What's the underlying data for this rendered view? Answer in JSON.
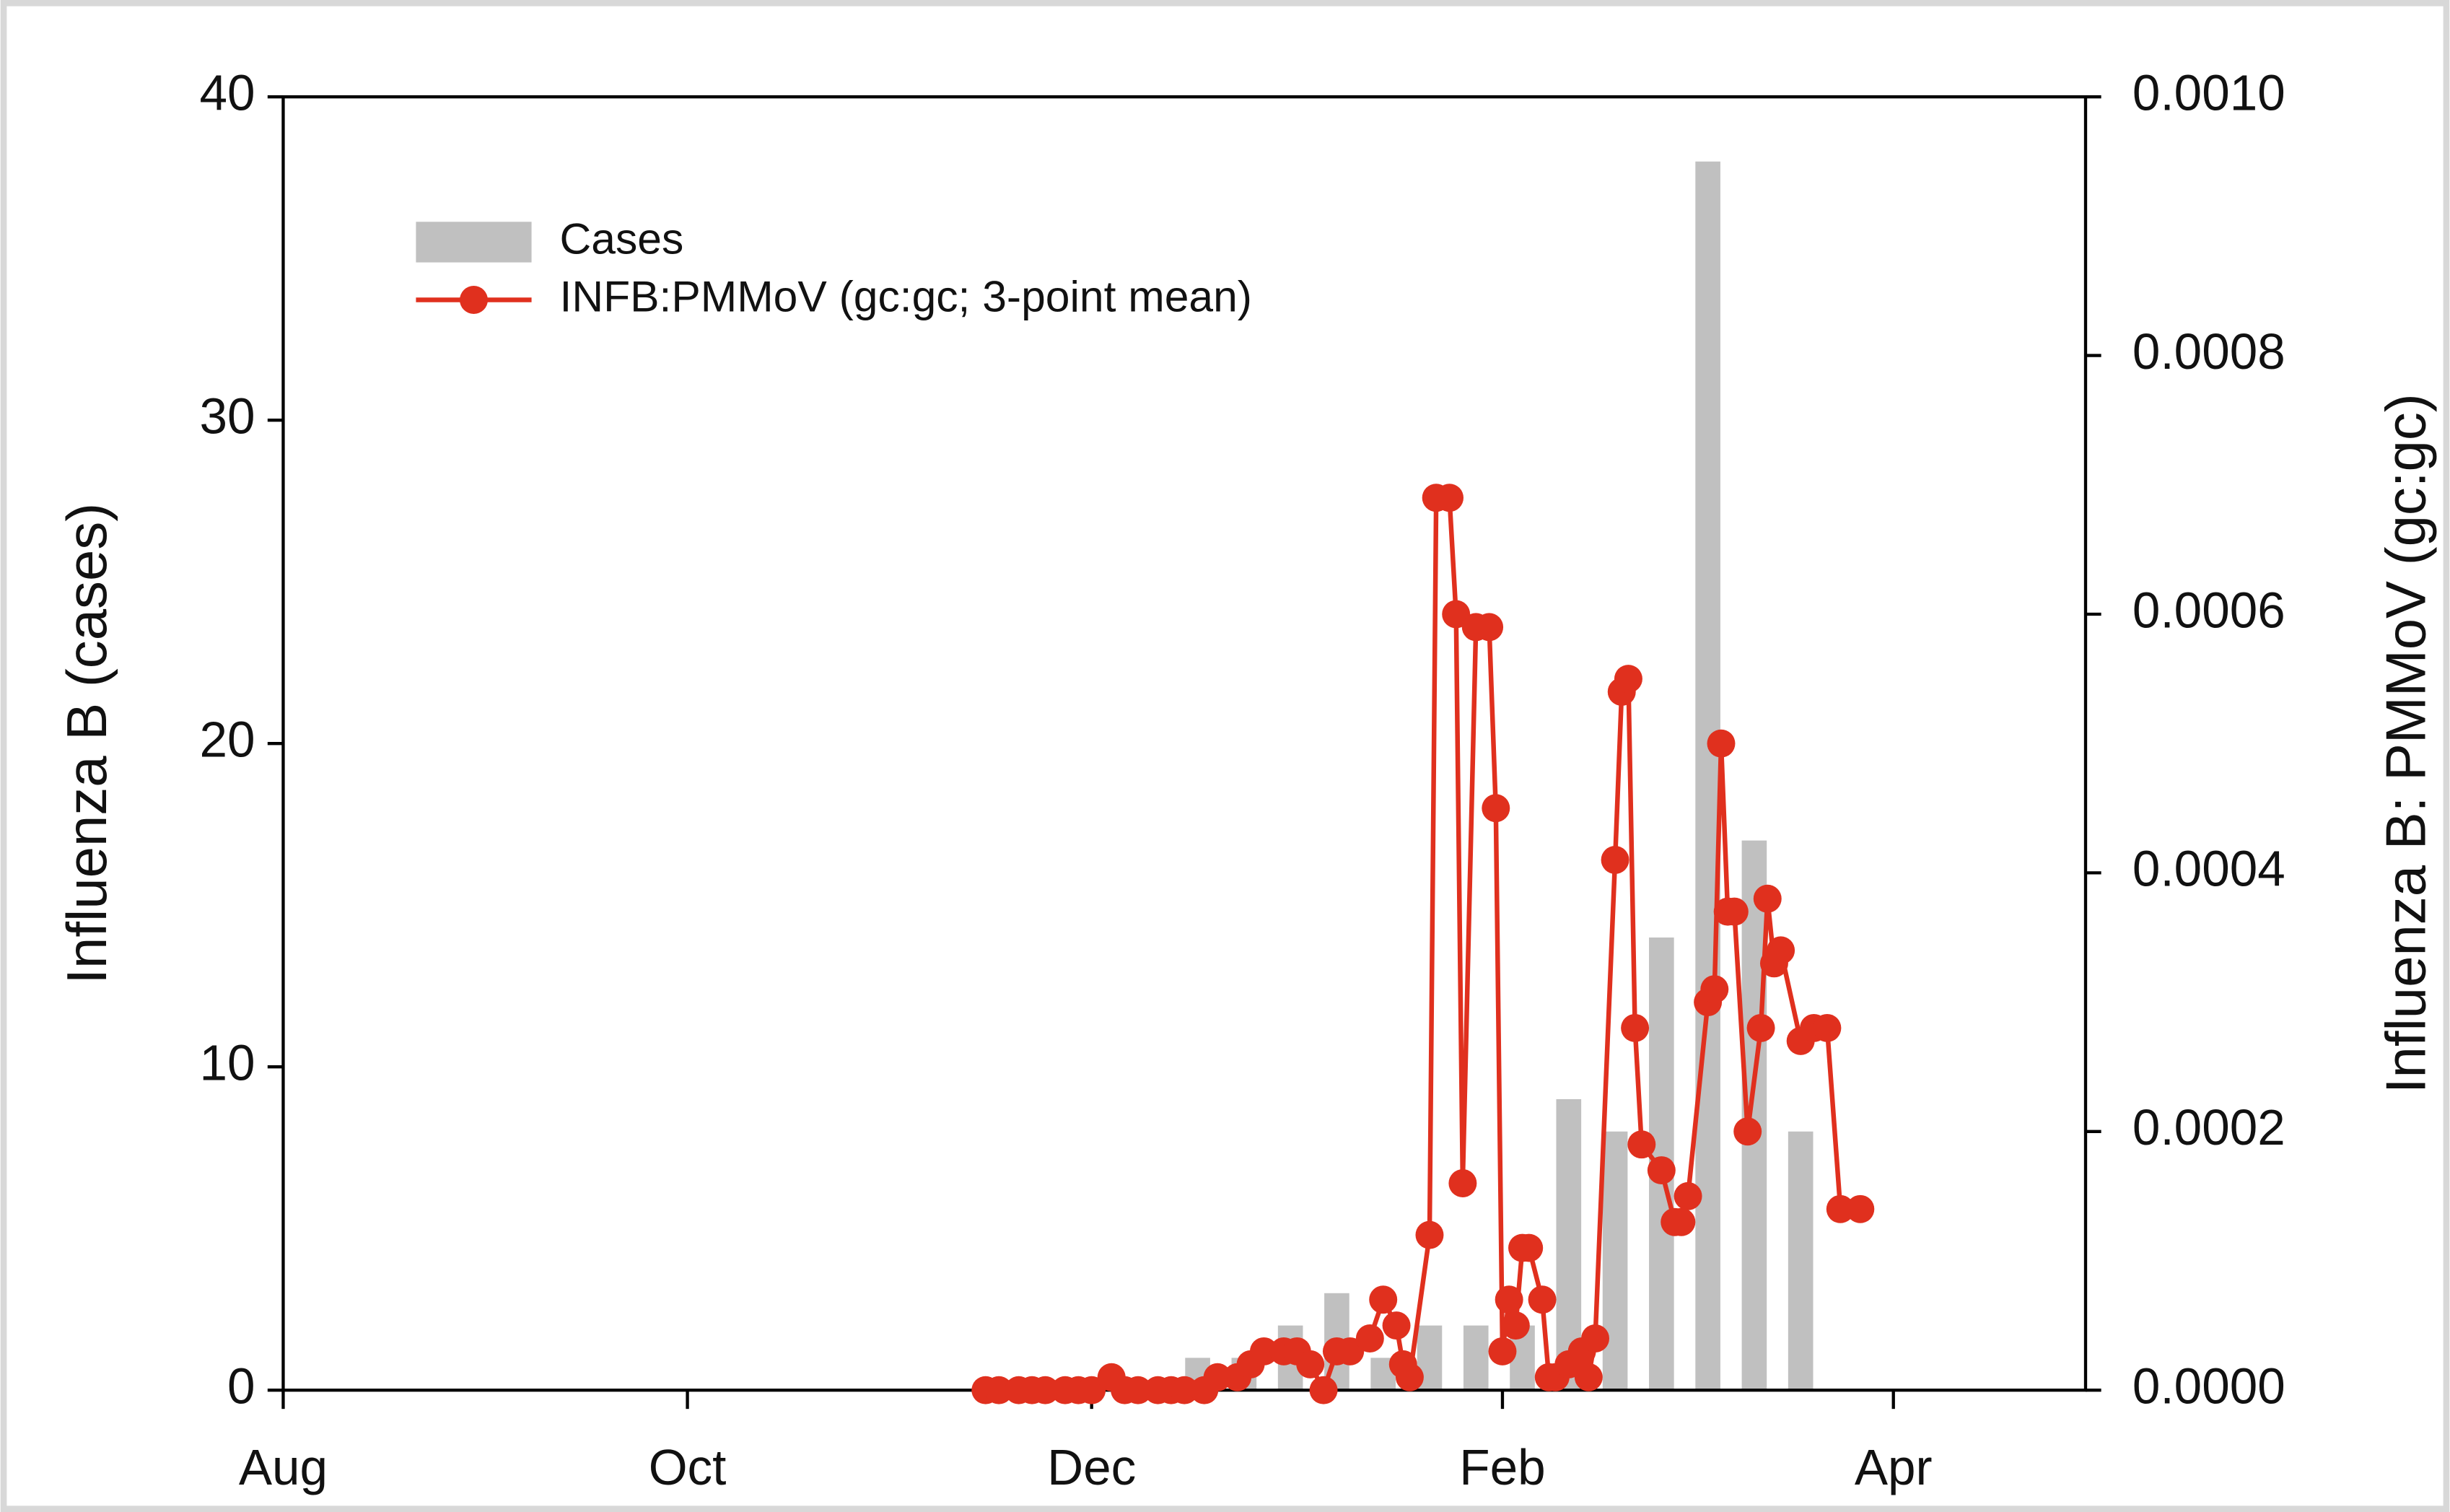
{
  "chart_data": {
    "type": "combo",
    "y_label": "Influenza B (cases)",
    "y2_label": "Influenza B: PMMoV (gc:gc)",
    "xlim": [
      0,
      272
    ],
    "xticks": [
      {
        "value": 0,
        "label": "Aug"
      },
      {
        "value": 61,
        "label": "Oct"
      },
      {
        "value": 122,
        "label": "Dec"
      },
      {
        "value": 184,
        "label": "Feb"
      },
      {
        "value": 243,
        "label": "Apr"
      }
    ],
    "ylim": [
      0,
      40
    ],
    "yticks": [
      0,
      10,
      20,
      30,
      40
    ],
    "y2lim": [
      0,
      0.001
    ],
    "y2ticks": [
      {
        "value": 0,
        "label": "0.0000"
      },
      {
        "value": 0.0002,
        "label": "0.0002"
      },
      {
        "value": 0.0004,
        "label": "0.0004"
      },
      {
        "value": 0.0006,
        "label": "0.0006"
      },
      {
        "value": 0.0008,
        "label": "0.0008"
      },
      {
        "value": 0.001,
        "label": "0.0010"
      }
    ],
    "legend": "upper left",
    "series": [
      {
        "name": "Cases",
        "type": "bar",
        "color": "#c0c0c0",
        "x": [
          138,
          145,
          152,
          159,
          166,
          173,
          180,
          187,
          194,
          201,
          208,
          215,
          222,
          229
        ],
        "values": [
          1,
          1,
          2,
          3,
          1,
          2,
          2,
          2,
          9,
          8,
          14,
          38,
          17,
          8
        ]
      },
      {
        "name": "INFB:PMMoV (gc:gc; 3-point mean)",
        "type": "line",
        "axis": "y2",
        "color": "#e0301e",
        "x": [
          106,
          108,
          111,
          113,
          115,
          118,
          120,
          122,
          125,
          127,
          129,
          132,
          134,
          136,
          139,
          141,
          144,
          146,
          148,
          151,
          153,
          155,
          157,
          159,
          161,
          164,
          166,
          168,
          169,
          170,
          173,
          174,
          176,
          177,
          178,
          180,
          182,
          183,
          184,
          185,
          186,
          187,
          188,
          190,
          191,
          192,
          194,
          196,
          197,
          198,
          201,
          202,
          203,
          204,
          205,
          208,
          210,
          211,
          212,
          215,
          216,
          217,
          218,
          219,
          221,
          223,
          224,
          225,
          226,
          229,
          231,
          233,
          235,
          238
        ],
        "values": [
          0,
          0,
          0,
          0,
          0,
          0,
          0,
          0,
          1e-05,
          0,
          0,
          0,
          0,
          0,
          0,
          1e-05,
          1e-05,
          2e-05,
          3e-05,
          3e-05,
          3e-05,
          2e-05,
          0,
          3e-05,
          3e-05,
          4e-05,
          7e-05,
          5e-05,
          2e-05,
          1e-05,
          0.00012,
          0.00069,
          0.00069,
          0.0006,
          0.00016,
          0.00059,
          0.00059,
          0.00045,
          3e-05,
          7e-05,
          5e-05,
          0.00011,
          0.00011,
          7e-05,
          1e-05,
          1e-05,
          2e-05,
          3e-05,
          1e-05,
          4e-05,
          0.00041,
          0.00054,
          0.00055,
          0.00028,
          0.00019,
          0.00017,
          0.00013,
          0.00013,
          0.00015,
          0.0003,
          0.00031,
          0.0005,
          0.00037,
          0.00037,
          0.0002,
          0.00028,
          0.00038,
          0.00033,
          0.00034,
          0.00027,
          0.00028,
          0.00028,
          0.00014,
          0.00014
        ]
      }
    ]
  }
}
